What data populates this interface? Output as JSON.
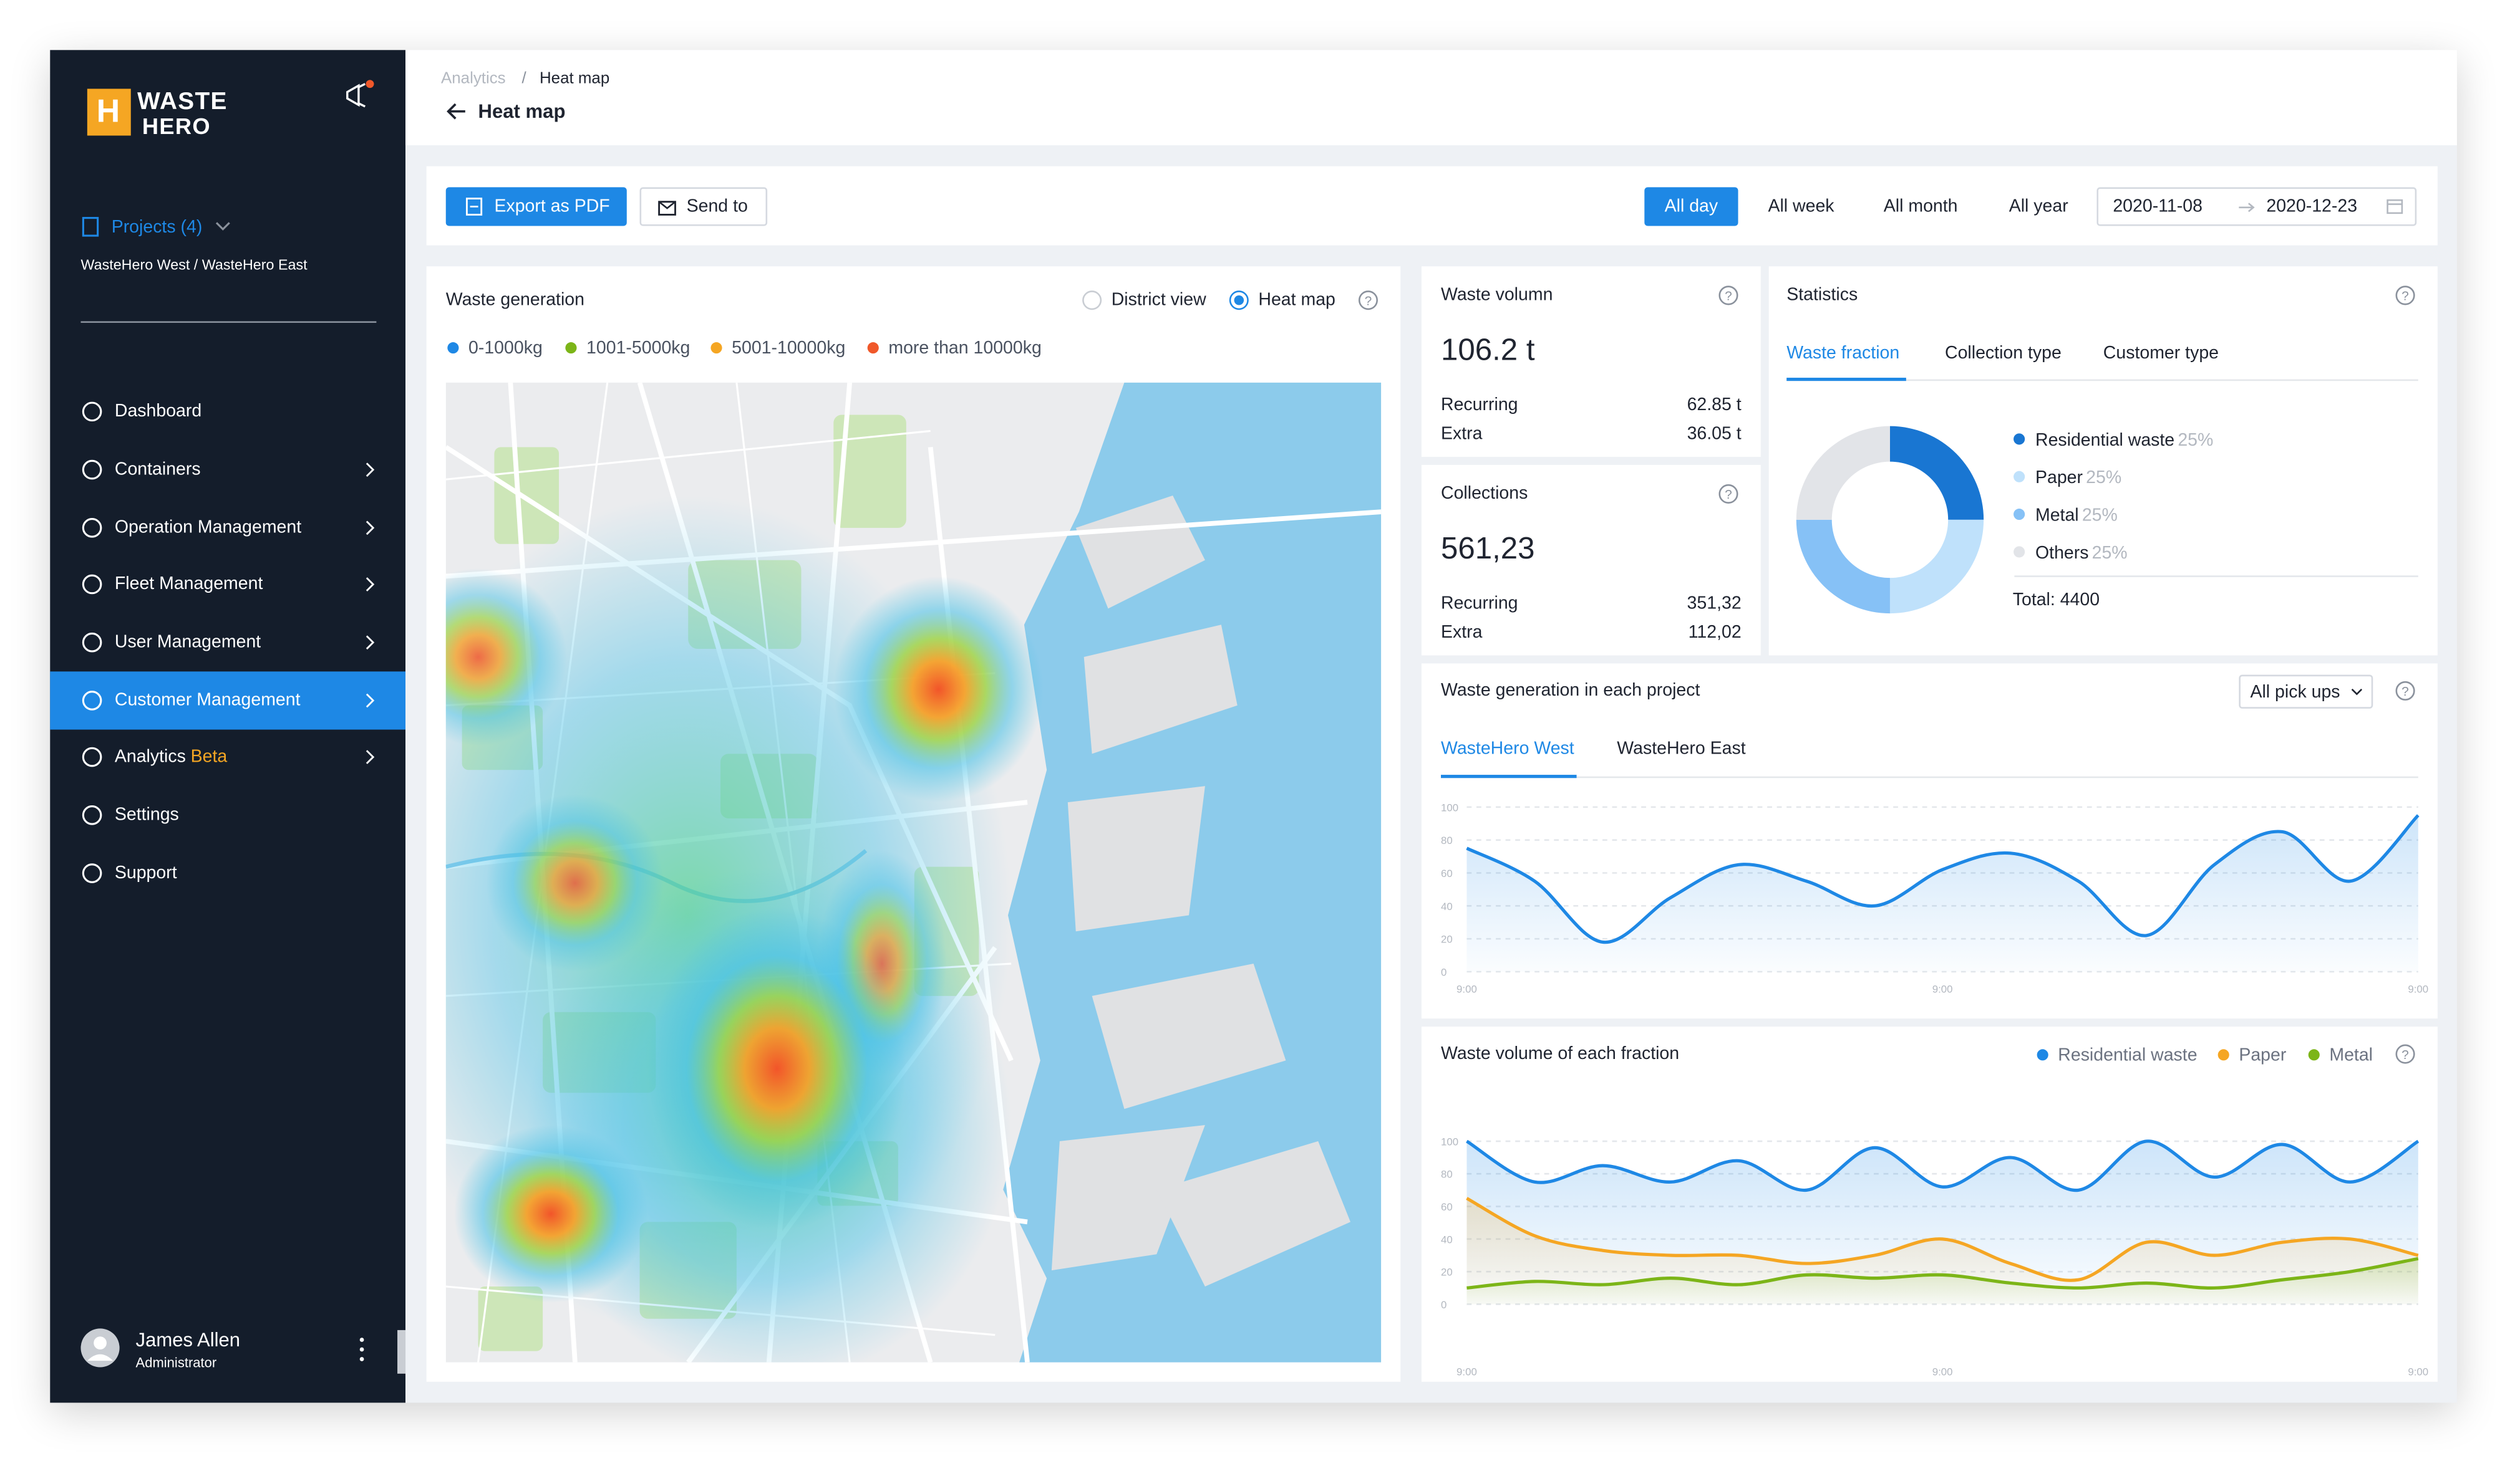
{
  "brand": {
    "line1": "WASTE",
    "line2": "HERO",
    "mark": "H"
  },
  "sidebar": {
    "projects": "Projects (4)",
    "project_names": "WasteHero West / WasteHero East",
    "menu": [
      {
        "label": "Dashboard"
      },
      {
        "label": "Containers"
      },
      {
        "label": "Operation Management"
      },
      {
        "label": "Fleet Management"
      },
      {
        "label": "User Management"
      },
      {
        "label": "Customer Management"
      },
      {
        "label": "Analytics",
        "badge": "Beta"
      },
      {
        "label": "Settings"
      },
      {
        "label": "Support"
      }
    ],
    "user": {
      "name": "James Allen",
      "role": "Administrator"
    }
  },
  "header": {
    "breadcrumb": {
      "parent": "Analytics",
      "separator": "/",
      "current": "Heat map"
    },
    "title": "Heat map"
  },
  "toolbar": {
    "export": "Export as PDF",
    "send": "Send to",
    "ranges": [
      "All day",
      "All week",
      "All month",
      "All year"
    ],
    "date_from": "2020-11-08",
    "date_to": "2020-12-23"
  },
  "waste_generation": {
    "title": "Waste generation",
    "views": [
      "District view",
      "Heat map"
    ],
    "legend": [
      {
        "label": "0-1000kg",
        "color": "#1e88e5"
      },
      {
        "label": "1001-5000kg",
        "color": "#7cb518"
      },
      {
        "label": "5001-10000kg",
        "color": "#f5a623"
      },
      {
        "label": "more than 10000kg",
        "color": "#f0582a"
      }
    ]
  },
  "waste_volume": {
    "title": "Waste volumn",
    "total": "106.2 t",
    "rows": [
      {
        "label": "Recurring",
        "value": "62.85 t"
      },
      {
        "label": "Extra",
        "value": "36.05 t"
      }
    ]
  },
  "collections": {
    "title": "Collections",
    "total": "561,23",
    "rows": [
      {
        "label": "Recurring",
        "value": "351,32"
      },
      {
        "label": "Extra",
        "value": "112,02"
      }
    ]
  },
  "statistics": {
    "title": "Statistics",
    "tabs": [
      "Waste fraction",
      "Collection type",
      "Customer type"
    ],
    "total": "Total: 4400",
    "chart_data": {
      "type": "donut",
      "categories": [
        "Residential waste",
        "Paper",
        "Metal",
        "Others"
      ],
      "values": [
        25,
        25,
        25,
        25
      ],
      "value_labels": [
        "25%",
        "25%",
        "25%",
        "25%"
      ],
      "colors": [
        "#1976d2",
        "#bfe1fb",
        "#86c1f6",
        "#e2e4e8"
      ]
    }
  },
  "project_chart": {
    "title": "Waste generation in each project",
    "dropdown": "All pick ups",
    "tabs": [
      "WasteHero West",
      "WasteHero East"
    ],
    "chart_data": {
      "type": "line",
      "categories": [
        "9:00",
        null,
        null,
        null,
        null,
        null,
        null,
        "9:00",
        null,
        null,
        null,
        null,
        null,
        null,
        "9:00"
      ],
      "series": [
        {
          "color": "#1e88e5",
          "values": [
            75,
            55,
            18,
            45,
            65,
            55,
            40,
            62,
            72,
            55,
            22,
            65,
            85,
            55,
            95
          ]
        }
      ],
      "ylim": [
        0,
        100
      ],
      "yticks": [
        0,
        20,
        40,
        60,
        80,
        100
      ],
      "grid": true
    }
  },
  "fraction_chart": {
    "title": "Waste volume of each fraction",
    "chart_data": {
      "type": "line",
      "categories": [
        "9:00",
        null,
        null,
        null,
        null,
        null,
        null,
        "9:00",
        null,
        null,
        null,
        null,
        null,
        null,
        "9:00"
      ],
      "series": [
        {
          "name": "Residential waste",
          "color": "#1e88e5",
          "values": [
            100,
            75,
            85,
            75,
            88,
            70,
            96,
            72,
            90,
            70,
            100,
            78,
            98,
            75,
            100
          ]
        },
        {
          "name": "Paper",
          "color": "#f5a623",
          "values": [
            65,
            42,
            33,
            30,
            30,
            25,
            30,
            40,
            25,
            15,
            38,
            30,
            38,
            40,
            30
          ]
        },
        {
          "name": "Metal",
          "color": "#7cb518",
          "values": [
            10,
            14,
            12,
            16,
            12,
            18,
            16,
            18,
            13,
            10,
            13,
            10,
            15,
            20,
            28
          ]
        }
      ],
      "ylim": [
        0,
        100
      ],
      "yticks": [
        0,
        20,
        40,
        60,
        80,
        100
      ],
      "grid": true
    }
  }
}
